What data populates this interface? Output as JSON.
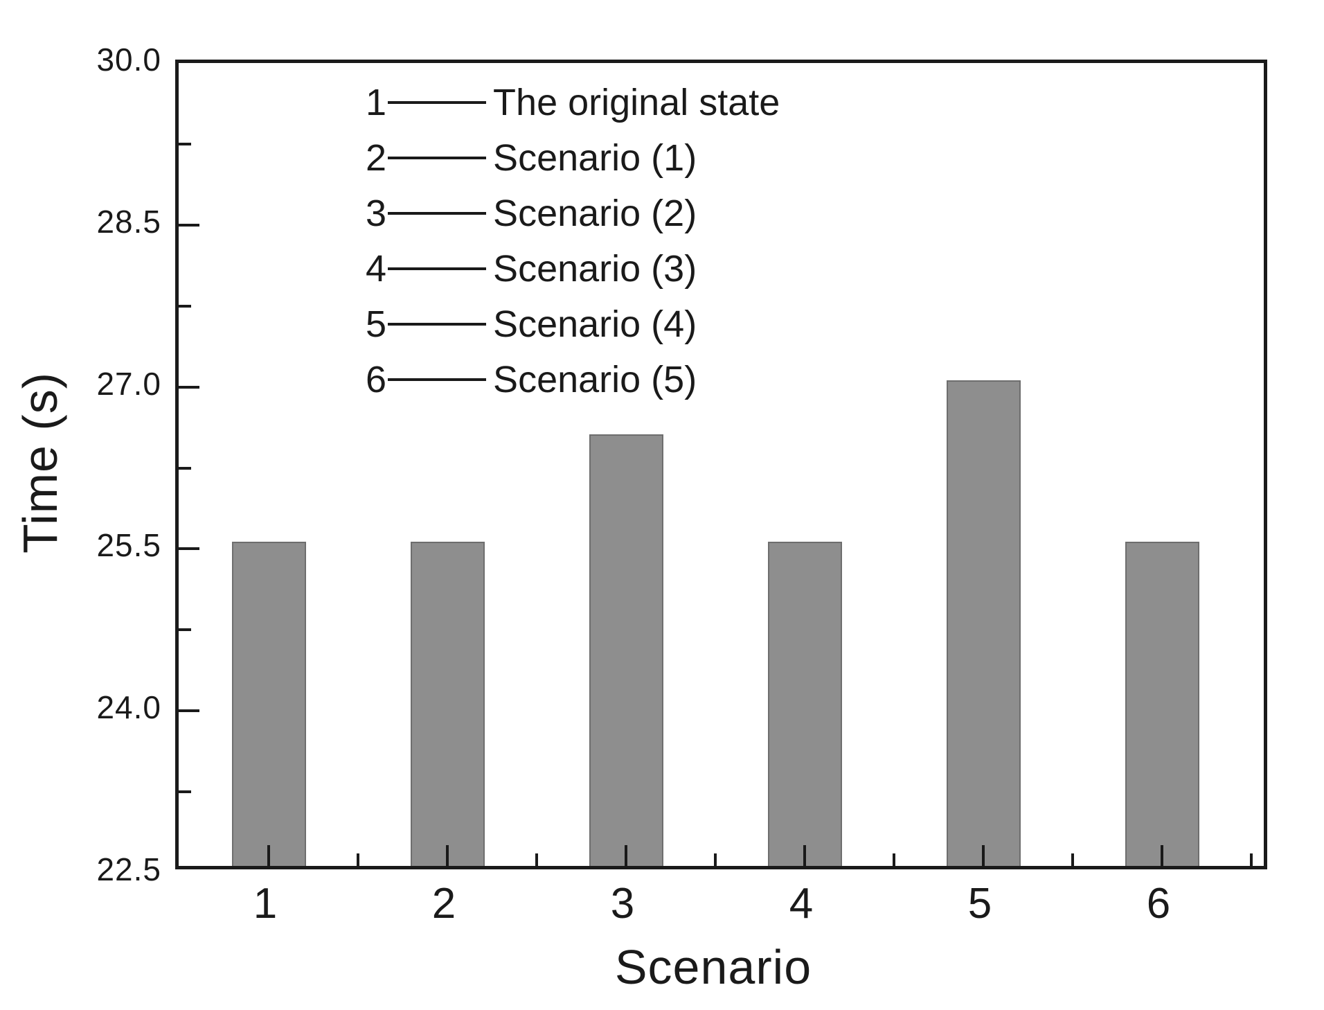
{
  "figure": {
    "background": "#ffffff",
    "axis_color": "#1a1a1a",
    "bar_fill": "#8e8e8e",
    "bar_edge": "#6e6e6e",
    "text_color": "#1a1a1a"
  },
  "chart_data": {
    "type": "bar",
    "title": "",
    "xlabel": "Scenario",
    "ylabel": "Time (s)",
    "categories": [
      "1",
      "2",
      "3",
      "4",
      "5",
      "6"
    ],
    "values": [
      25.5,
      25.5,
      26.5,
      25.5,
      27.0,
      25.5
    ],
    "ylim": [
      22.5,
      30.0
    ],
    "y_major_ticks": [
      30.0,
      28.5,
      27.0,
      25.5,
      24.0,
      22.5
    ],
    "y_tick_labels": [
      "30.0",
      "28.5",
      "27.0",
      "25.5",
      "24.0",
      "22.5"
    ],
    "y_minor_ticks": [
      29.25,
      27.75,
      26.25,
      24.75,
      23.25
    ],
    "x_minor_ticks_between_categories": true,
    "grid": false,
    "legend_position": "inside-top-left",
    "bar_color": "#8e8e8e"
  },
  "legend": {
    "items": [
      {
        "num": "1",
        "label": "The original state"
      },
      {
        "num": "2",
        "label": "Scenario (1)"
      },
      {
        "num": "3",
        "label": "Scenario (2)"
      },
      {
        "num": "4",
        "label": "Scenario (3)"
      },
      {
        "num": "5",
        "label": "Scenario (4)"
      },
      {
        "num": "6",
        "label": "Scenario (5)"
      }
    ]
  }
}
